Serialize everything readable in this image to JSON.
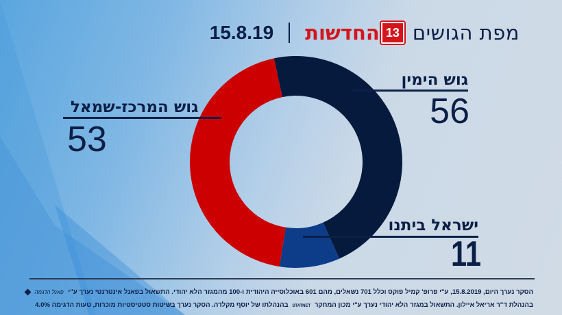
{
  "header": {
    "title": "מפת הגושים",
    "brand_text": "החדשות",
    "brand_logo": "13",
    "date": "15.8.19"
  },
  "labels": {
    "right_bloc": {
      "name": "גוש הימין",
      "value": "56"
    },
    "center_left_bloc": {
      "name": "גוש המרכז-שמאל",
      "value": "53"
    },
    "yisrael_beytenu": {
      "name": "ישראל ביתנו",
      "value": "11"
    }
  },
  "colors": {
    "right_bloc": "#061a3d",
    "center_left_bloc": "#cc0000",
    "yisrael_beytenu": "#0d3c88",
    "text": "#0c1f46"
  },
  "footer": {
    "line1": "הסקר נערך היום, 15.8.2019, ע\"י פרופ' קמיל פוקס וכלל 701 נשאלים, מהם 601 באוכלוסייה היהודית ו-100 מהמגזר הלא יהודי.  התשאול בפאנל אינטרנטי נערך ע\"י",
    "line1_logo": "פאנל הדגמה",
    "line2": "בהנהלת ד\"ר אריאל איילון. התשאול במגזר הלא יהודי נערך ע\"י מכון המחקר",
    "line2_logo": "STATNET",
    "line2_end": "בהנהלתו של יוסף מקלדה. הסקר נערך בשיטות סטטיסטיות מוכרות, טעות הדגימה 4.0%"
  },
  "chart_data": {
    "type": "pie",
    "subtype": "donut",
    "title": "מפת הגושים 15.8.19",
    "categories": [
      "גוש הימין",
      "ישראל ביתנו",
      "גוש המרכז-שמאל"
    ],
    "values": [
      56,
      11,
      53
    ],
    "total": 120,
    "colors": [
      "#061a3d",
      "#0d3c88",
      "#cc0000"
    ],
    "start_angle_deg": -12,
    "direction": "clockwise",
    "legend": "inline labels"
  }
}
